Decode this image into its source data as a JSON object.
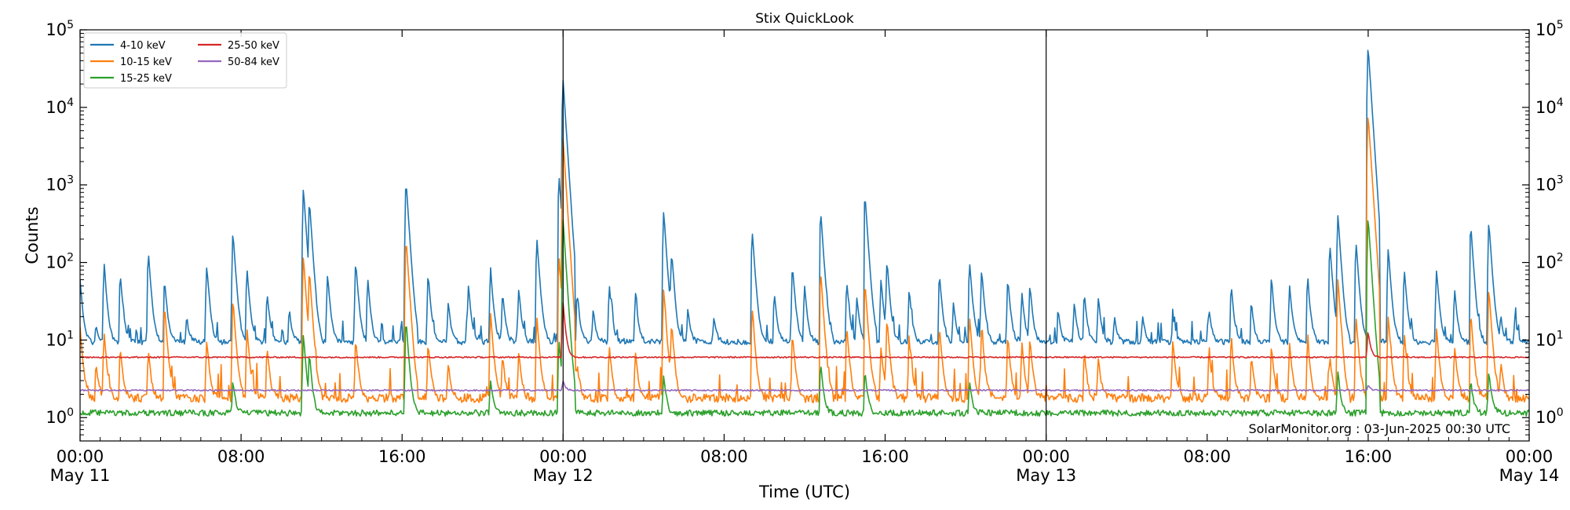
{
  "chart_data": {
    "type": "line",
    "title": "Stix QuickLook",
    "xlabel": "Time (UTC)",
    "ylabel": "Counts",
    "yscale": "log",
    "ylim": [
      0.5,
      100000
    ],
    "xlim_hours": [
      0,
      72
    ],
    "x_ticks": [
      {
        "hour": 0,
        "time": "00:00",
        "date": "May 11"
      },
      {
        "hour": 8,
        "time": "08:00",
        "date": ""
      },
      {
        "hour": 16,
        "time": "16:00",
        "date": ""
      },
      {
        "hour": 24,
        "time": "00:00",
        "date": "May 12"
      },
      {
        "hour": 32,
        "time": "08:00",
        "date": ""
      },
      {
        "hour": 40,
        "time": "16:00",
        "date": ""
      },
      {
        "hour": 48,
        "time": "00:00",
        "date": "May 13"
      },
      {
        "hour": 56,
        "time": "08:00",
        "date": ""
      },
      {
        "hour": 64,
        "time": "16:00",
        "date": ""
      },
      {
        "hour": 72,
        "time": "00:00",
        "date": "May 14"
      }
    ],
    "y_ticks": [
      {
        "value": 1,
        "base": "10",
        "exp": "0"
      },
      {
        "value": 10,
        "base": "10",
        "exp": "1"
      },
      {
        "value": 100,
        "base": "10",
        "exp": "2"
      },
      {
        "value": 1000,
        "base": "10",
        "exp": "3"
      },
      {
        "value": 10000,
        "base": "10",
        "exp": "4"
      },
      {
        "value": 100000,
        "base": "10",
        "exp": "5"
      }
    ],
    "day_boundaries_hours": [
      24,
      48
    ],
    "credit": "SolarMonitor.org : 03-Jun-2025 00:30 UTC",
    "legend_position": "upper-left",
    "series": [
      {
        "name": "4-10 keV",
        "color": "#1f77b4",
        "baseline": 9.5,
        "noise": 0.08,
        "peaks": [
          [
            0.0,
            60
          ],
          [
            0.8,
            15
          ],
          [
            1.2,
            90
          ],
          [
            2.0,
            70
          ],
          [
            3.4,
            130
          ],
          [
            4.2,
            60
          ],
          [
            5.3,
            20
          ],
          [
            6.3,
            90
          ],
          [
            7.6,
            240
          ],
          [
            8.3,
            80
          ],
          [
            9.3,
            40
          ],
          [
            10.4,
            25
          ],
          [
            11.1,
            900
          ],
          [
            11.4,
            550
          ],
          [
            12.3,
            70
          ],
          [
            13.7,
            100
          ],
          [
            14.3,
            60
          ],
          [
            16.2,
            1100
          ],
          [
            17.3,
            70
          ],
          [
            18.3,
            30
          ],
          [
            19.3,
            50
          ],
          [
            20.4,
            80
          ],
          [
            21.0,
            40
          ],
          [
            21.8,
            45
          ],
          [
            22.7,
            200
          ],
          [
            23.8,
            1300
          ],
          [
            24.0,
            22000
          ],
          [
            24.7,
            40
          ],
          [
            25.5,
            25
          ],
          [
            26.3,
            50
          ],
          [
            27.6,
            40
          ],
          [
            29.0,
            450
          ],
          [
            29.4,
            120
          ],
          [
            30.2,
            25
          ],
          [
            31.5,
            20
          ],
          [
            33.4,
            250
          ],
          [
            34.5,
            40
          ],
          [
            35.4,
            90
          ],
          [
            36.0,
            50
          ],
          [
            36.8,
            450
          ],
          [
            38.1,
            55
          ],
          [
            38.6,
            35
          ],
          [
            39.0,
            750
          ],
          [
            39.8,
            60
          ],
          [
            40.1,
            100
          ],
          [
            41.2,
            45
          ],
          [
            42.7,
            70
          ],
          [
            43.4,
            30
          ],
          [
            44.2,
            100
          ],
          [
            44.8,
            80
          ],
          [
            46.1,
            60
          ],
          [
            46.8,
            40
          ],
          [
            47.2,
            50
          ],
          [
            48.6,
            25
          ],
          [
            49.4,
            30
          ],
          [
            49.9,
            40
          ],
          [
            50.6,
            35
          ],
          [
            51.4,
            20
          ],
          [
            52.8,
            20
          ],
          [
            54.3,
            20
          ],
          [
            56.1,
            25
          ],
          [
            57.2,
            50
          ],
          [
            58.2,
            30
          ],
          [
            59.2,
            60
          ],
          [
            60.1,
            50
          ],
          [
            61.0,
            60
          ],
          [
            62.1,
            170
          ],
          [
            62.5,
            400
          ],
          [
            63.4,
            180
          ],
          [
            64.0,
            60000
          ],
          [
            65.0,
            150
          ],
          [
            65.8,
            80
          ],
          [
            67.4,
            80
          ],
          [
            68.3,
            45
          ],
          [
            69.1,
            300
          ],
          [
            70.0,
            330
          ],
          [
            70.6,
            20
          ],
          [
            71.3,
            20
          ]
        ]
      },
      {
        "name": "10-15 keV",
        "color": "#ff7f0e",
        "baseline": 1.8,
        "noise": 0.13,
        "peaks": [
          [
            0.0,
            15
          ],
          [
            0.8,
            5
          ],
          [
            1.2,
            12
          ],
          [
            2.0,
            8
          ],
          [
            3.4,
            7
          ],
          [
            4.2,
            28
          ],
          [
            6.3,
            10
          ],
          [
            7.6,
            32
          ],
          [
            8.3,
            14
          ],
          [
            9.3,
            8
          ],
          [
            11.1,
            120
          ],
          [
            11.4,
            70
          ],
          [
            13.7,
            10
          ],
          [
            16.2,
            200
          ],
          [
            17.3,
            9
          ],
          [
            18.3,
            5
          ],
          [
            20.4,
            22
          ],
          [
            21.0,
            6
          ],
          [
            21.8,
            7
          ],
          [
            22.7,
            20
          ],
          [
            23.8,
            120
          ],
          [
            24.0,
            3800
          ],
          [
            24.7,
            5
          ],
          [
            26.3,
            8
          ],
          [
            27.6,
            7
          ],
          [
            29.0,
            45
          ],
          [
            29.4,
            15
          ],
          [
            33.4,
            25
          ],
          [
            35.4,
            12
          ],
          [
            36.8,
            75
          ],
          [
            38.1,
            14
          ],
          [
            39.0,
            55
          ],
          [
            39.8,
            8
          ],
          [
            40.1,
            18
          ],
          [
            41.2,
            10
          ],
          [
            42.7,
            15
          ],
          [
            44.2,
            20
          ],
          [
            44.8,
            14
          ],
          [
            46.1,
            11
          ],
          [
            46.8,
            9
          ],
          [
            47.2,
            10
          ],
          [
            49.9,
            7
          ],
          [
            50.6,
            6
          ],
          [
            54.3,
            10
          ],
          [
            56.1,
            7
          ],
          [
            57.2,
            10
          ],
          [
            58.2,
            6
          ],
          [
            59.2,
            8
          ],
          [
            60.1,
            9
          ],
          [
            61.0,
            10
          ],
          [
            62.1,
            6
          ],
          [
            62.5,
            60
          ],
          [
            63.4,
            20
          ],
          [
            64.0,
            8000
          ],
          [
            65.0,
            20
          ],
          [
            65.8,
            12
          ],
          [
            67.4,
            14
          ],
          [
            68.3,
            8
          ],
          [
            69.1,
            22
          ],
          [
            70.0,
            45
          ],
          [
            70.6,
            5
          ]
        ]
      },
      {
        "name": "15-25 keV",
        "color": "#2ca02c",
        "baseline": 1.15,
        "noise": 0.09,
        "peaks": [
          [
            7.6,
            3
          ],
          [
            11.1,
            12
          ],
          [
            11.4,
            6
          ],
          [
            16.2,
            18
          ],
          [
            20.4,
            3
          ],
          [
            23.8,
            10
          ],
          [
            24.0,
            350
          ],
          [
            29.0,
            3.5
          ],
          [
            36.8,
            5
          ],
          [
            39.0,
            4
          ],
          [
            44.2,
            3
          ],
          [
            64.0,
            380
          ],
          [
            62.5,
            4
          ],
          [
            69.1,
            3
          ],
          [
            70.0,
            4
          ]
        ]
      },
      {
        "name": "25-50 keV",
        "color": "#d62728",
        "baseline": 6.0,
        "noise": 0.02,
        "peaks": [
          [
            24.0,
            30
          ],
          [
            64.0,
            13
          ]
        ]
      },
      {
        "name": "50-84 keV",
        "color": "#9467bd",
        "baseline": 2.25,
        "noise": 0.02,
        "peaks": [
          [
            24.0,
            3
          ],
          [
            64.0,
            2.6
          ]
        ]
      }
    ]
  }
}
